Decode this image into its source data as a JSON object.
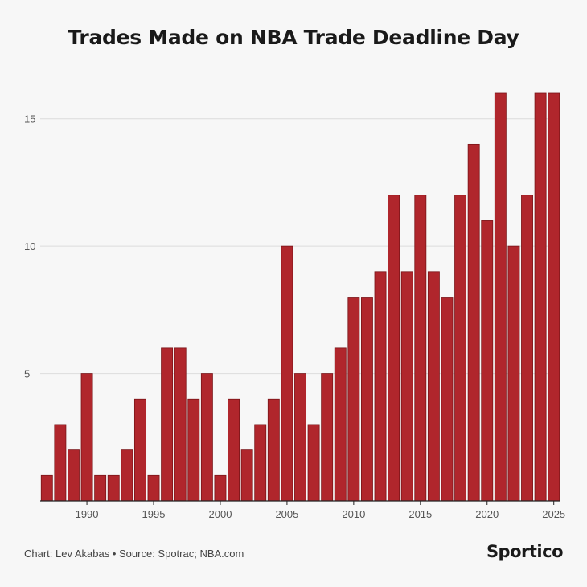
{
  "chart_data": {
    "type": "bar",
    "title": "Trades Made on NBA Trade Deadline Day",
    "xlabel": "",
    "ylabel": "",
    "x": [
      1987,
      1988,
      1989,
      1990,
      1991,
      1992,
      1993,
      1994,
      1995,
      1996,
      1997,
      1998,
      1999,
      2000,
      2001,
      2002,
      2003,
      2004,
      2005,
      2006,
      2007,
      2008,
      2009,
      2010,
      2011,
      2012,
      2013,
      2014,
      2015,
      2016,
      2017,
      2018,
      2019,
      2020,
      2021,
      2022,
      2023,
      2024,
      2025
    ],
    "values": [
      1,
      3,
      2,
      5,
      1,
      1,
      2,
      4,
      1,
      6,
      6,
      4,
      5,
      1,
      4,
      2,
      3,
      4,
      10,
      5,
      3,
      5,
      6,
      8,
      8,
      9,
      12,
      9,
      12,
      9,
      8,
      12,
      14,
      11,
      16,
      10,
      12,
      16,
      16
    ],
    "x_ticks": [
      "1990",
      "1995",
      "2000",
      "2005",
      "2010",
      "2015",
      "2020",
      "2025"
    ],
    "y_ticks": [
      "5",
      "10",
      "15"
    ],
    "ylim": [
      0,
      16.5
    ],
    "grid": true,
    "bar_color": "#b0262c"
  },
  "footer": {
    "credit": "Chart: Lev Akabas • Source: Spotrac; NBA.com",
    "brand": "Sportico"
  }
}
